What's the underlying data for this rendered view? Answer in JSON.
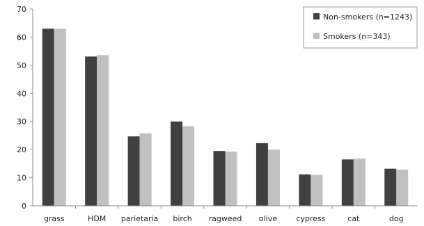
{
  "chart_data": {
    "type": "bar",
    "categories": [
      "grass",
      "HDM",
      "parietaria",
      "birch",
      "ragweed",
      "olive",
      "cypress",
      "cat",
      "dog"
    ],
    "series": [
      {
        "name": "Non-smokers (n=1243)",
        "color": "#404040",
        "values": [
          63,
          53.1,
          24.7,
          30,
          19.5,
          22.3,
          11.2,
          16.5,
          13.2
        ]
      },
      {
        "name": "Smokers (n=343)",
        "color": "#c0c0c0",
        "values": [
          63,
          53.6,
          25.8,
          28.3,
          19.3,
          20,
          11,
          16.8,
          12.9
        ]
      }
    ],
    "yticks": [
      "0",
      "10",
      "20",
      "30",
      "40",
      "50",
      "60",
      "70"
    ],
    "ylim": [
      0,
      70
    ],
    "grid": false,
    "legend": "top-right"
  }
}
